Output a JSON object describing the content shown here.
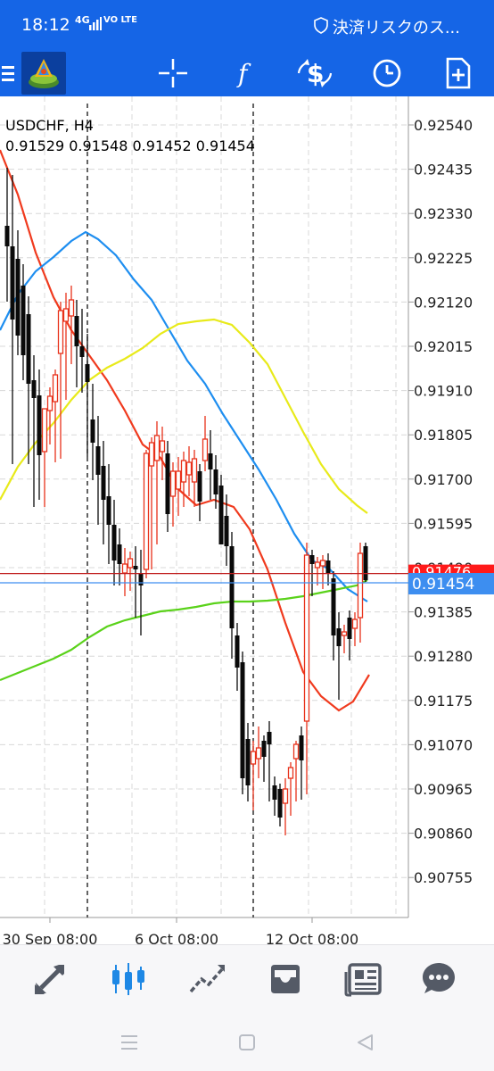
{
  "status_bar": {
    "time": "18:12",
    "network": "4G",
    "network_sub": "VO LTE",
    "notification": "決済リスクのス..."
  },
  "toolbar": {
    "icons": [
      "menu-icon",
      "metatrader-logo",
      "crosshair-icon",
      "indicators-icon",
      "symbol-icon",
      "period-icon",
      "new-order-icon"
    ]
  },
  "chart": {
    "symbol_label": "USDCHF, H4",
    "ohlc_label": "0.91529 0.91548 0.91452 0.91454",
    "bid_label": "0.91454",
    "ask_label": "0.91476",
    "price_ticks": [
      "0.92540",
      "0.92435",
      "0.92330",
      "0.92225",
      "0.92120",
      "0.92015",
      "0.91910",
      "0.91805",
      "0.91700",
      "0.91595",
      "0.91490",
      "0.91385",
      "0.91280",
      "0.91175",
      "0.91070",
      "0.90965",
      "0.90860",
      "0.90755"
    ],
    "time_ticks": [
      "30 Sep 08:00",
      "6 Oct 08:00",
      "12 Oct 08:00"
    ],
    "colors": {
      "up": "#e8311a",
      "down": "#0a0a0a",
      "ma_fast": "#f03a1e",
      "ma_mid": "#1e8ef0",
      "ma_slow": "#e8ea1a",
      "ma_long": "#5ad21a",
      "bid_line": "#3d8ef0",
      "ask_line": "#c01e1e",
      "ask_box": "#ff1a1a"
    }
  },
  "chart_data": {
    "type": "candlestick",
    "symbol": "USDCHF",
    "timeframe": "H4",
    "ylim": [
      0.907,
      0.9258
    ],
    "x": [
      "30 Sep 08:00",
      "6 Oct 08:00",
      "12 Oct 08:00"
    ],
    "last": {
      "open": 0.91529,
      "high": 0.91548,
      "low": 0.91452,
      "close": 0.91454
    },
    "bid": 0.91454,
    "ask": 0.91476
  },
  "bottom_nav": {
    "items": [
      "quotes-icon",
      "chart-icon",
      "trade-icon",
      "history-icon",
      "news-icon",
      "chat-icon"
    ]
  },
  "system_nav": {
    "items": [
      "recent-apps-icon",
      "home-icon",
      "back-icon"
    ]
  }
}
